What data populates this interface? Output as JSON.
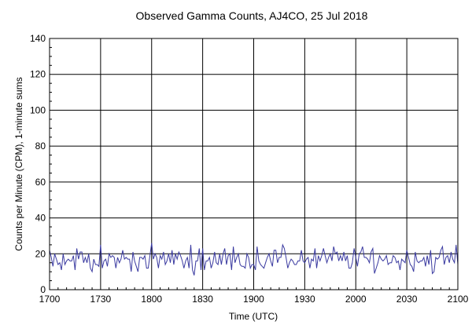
{
  "chart_data": {
    "type": "line",
    "title": "Observed Gamma Counts, AJ4CO, 25 Jul 2018",
    "xlabel": "Time (UTC)",
    "ylabel": "Counts per Minute (CPM), 1-minute sums",
    "x_tick_labels": [
      "1700",
      "1730",
      "1800",
      "1830",
      "1900",
      "1930",
      "2000",
      "2030",
      "2100"
    ],
    "y_ticks": [
      0,
      20,
      40,
      60,
      80,
      100,
      120,
      140
    ],
    "ylim": [
      0,
      140
    ],
    "grid": true,
    "series": [
      {
        "color": "#3a3aa0",
        "noise_band": {
          "baseline_cpm": 17,
          "min_cpm": 6,
          "max_cpm": 27,
          "interval": "1 minute"
        }
      }
    ]
  }
}
